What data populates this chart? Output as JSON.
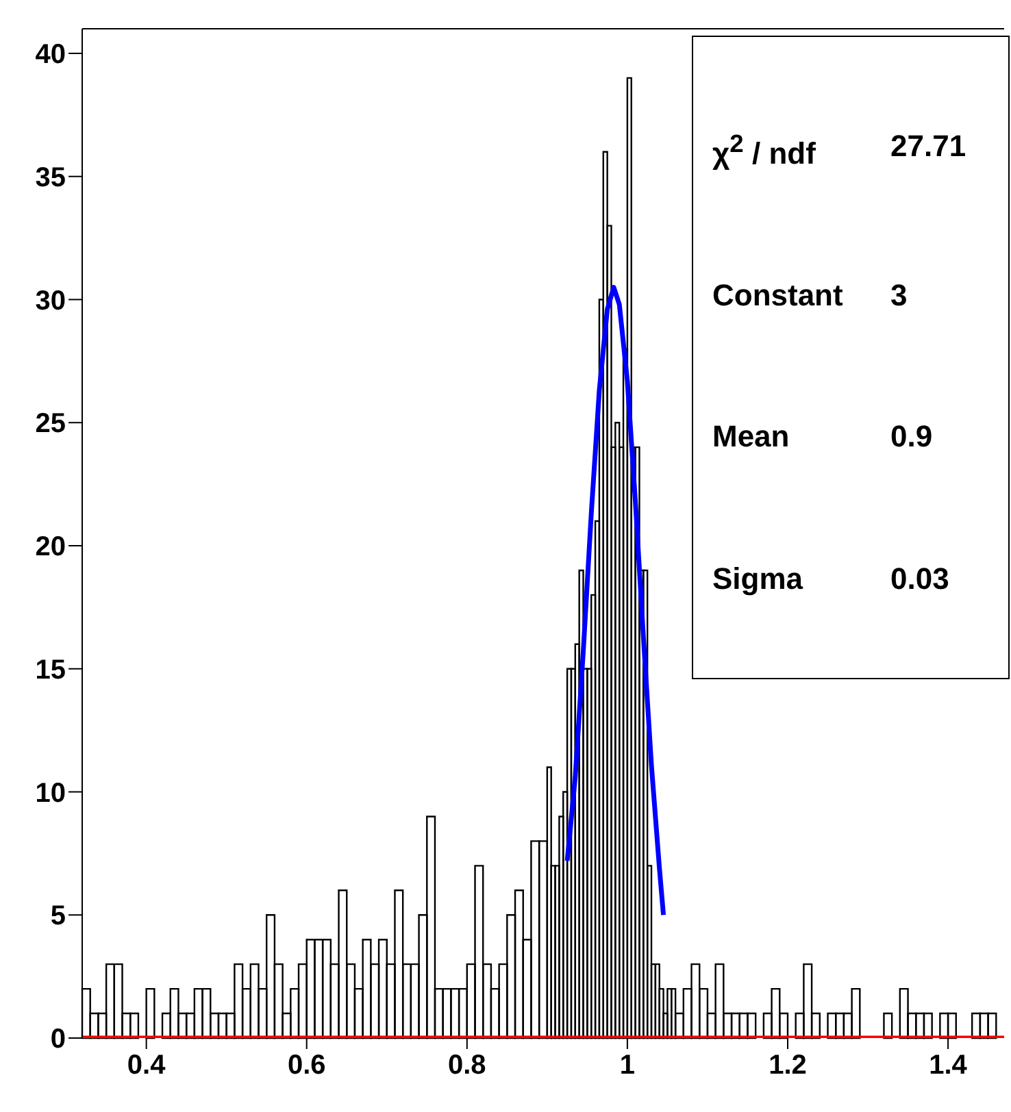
{
  "chart_data": {
    "type": "histogram",
    "xlim": [
      0.32,
      1.47
    ],
    "xticks": [
      0.4,
      0.6,
      0.8,
      1,
      1.2,
      1.4
    ],
    "ylim": [
      0,
      41
    ],
    "yticks": [
      0,
      5,
      10,
      15,
      20,
      25,
      30,
      35,
      40
    ],
    "annotations": [
      "χ$^{2}$ / ndf",
      "27.71",
      "Constant",
      "3",
      "Mean",
      "0.9",
      "Sigma",
      "0.03"
    ],
    "series": [
      {
        "color": "#000000",
        "bins": [
          0.32,
          0.33,
          0.34,
          0.35,
          0.36,
          0.37,
          0.38,
          0.39,
          0.4,
          0.41,
          0.42,
          0.43,
          0.44,
          0.45,
          0.46,
          0.47,
          0.48,
          0.49,
          0.5,
          0.51,
          0.52,
          0.53,
          0.54,
          0.55,
          0.56,
          0.57,
          0.58,
          0.59,
          0.6,
          0.61,
          0.62,
          0.63,
          0.64,
          0.65,
          0.66,
          0.67,
          0.68,
          0.69,
          0.7,
          0.71,
          0.72,
          0.73,
          0.74,
          0.75,
          0.76,
          0.77,
          0.78,
          0.79,
          0.8,
          0.81,
          0.82,
          0.83,
          0.84,
          0.85,
          0.86,
          0.87,
          0.88,
          0.89,
          0.9,
          0.905,
          0.91,
          0.915,
          0.92,
          0.925,
          0.93,
          0.935,
          0.94,
          0.945,
          0.95,
          0.955,
          0.96,
          0.965,
          0.97,
          0.975,
          0.98,
          0.985,
          0.99,
          0.995,
          1,
          1.005,
          1.01,
          1.015,
          1.02,
          1.025,
          1.03,
          1.035,
          1.04,
          1.045,
          1.05,
          1.055,
          1.06,
          1.07,
          1.08,
          1.09,
          1.1,
          1.11,
          1.12,
          1.13,
          1.14,
          1.15,
          1.16,
          1.17,
          1.18,
          1.19,
          1.2,
          1.21,
          1.22,
          1.23,
          1.24,
          1.25,
          1.26,
          1.27,
          1.28,
          1.29,
          1.32,
          1.33,
          1.34,
          1.35,
          1.36,
          1.37,
          1.38,
          1.39,
          1.4,
          1.41,
          1.43,
          1.44,
          1.45,
          1.46
        ],
        "values": [
          2,
          1,
          1,
          3,
          3,
          1,
          1,
          0,
          2,
          0,
          1,
          2,
          1,
          1,
          2,
          2,
          1,
          1,
          1,
          3,
          2,
          3,
          2,
          5,
          3,
          1,
          2,
          3,
          4,
          4,
          4,
          3,
          6,
          3,
          2,
          4,
          3,
          4,
          3,
          6,
          3,
          3,
          5,
          9,
          2,
          2,
          2,
          2,
          3,
          7,
          3,
          2,
          3,
          5,
          6,
          4,
          8,
          8,
          11,
          7,
          7,
          9,
          10,
          15,
          15,
          16,
          19,
          15,
          15,
          18,
          21,
          30,
          36,
          33,
          24,
          25,
          24,
          28,
          39,
          24,
          24,
          19,
          19,
          7,
          3,
          3,
          2,
          1,
          2,
          2,
          1,
          2,
          3,
          2,
          1,
          3,
          1,
          1,
          1,
          1,
          0,
          1,
          2,
          1,
          0,
          1,
          3,
          1,
          0,
          1,
          1,
          1,
          2,
          0,
          1,
          0,
          2,
          1,
          1,
          1,
          0,
          1,
          1,
          0,
          1,
          1,
          1
        ]
      },
      {
        "type": "line",
        "color": "#ff0000",
        "marker": "none",
        "x": [
          0.32,
          1.47
        ],
        "values": [
          0,
          0
        ]
      },
      {
        "type": "line",
        "color": "#0000ff",
        "marker": "none",
        "x": [
          0.925,
          0.935,
          0.945,
          0.955,
          0.965,
          0.975,
          0.983,
          0.99,
          1.0,
          1.01,
          1.02,
          1.03,
          1.04,
          1.045
        ],
        "values": [
          7.2,
          10.6,
          15.7,
          21.3,
          26.3,
          29.6,
          30.5,
          29.8,
          26.7,
          21.8,
          16.3,
          11.1,
          6.9,
          5.0
        ]
      }
    ]
  }
}
